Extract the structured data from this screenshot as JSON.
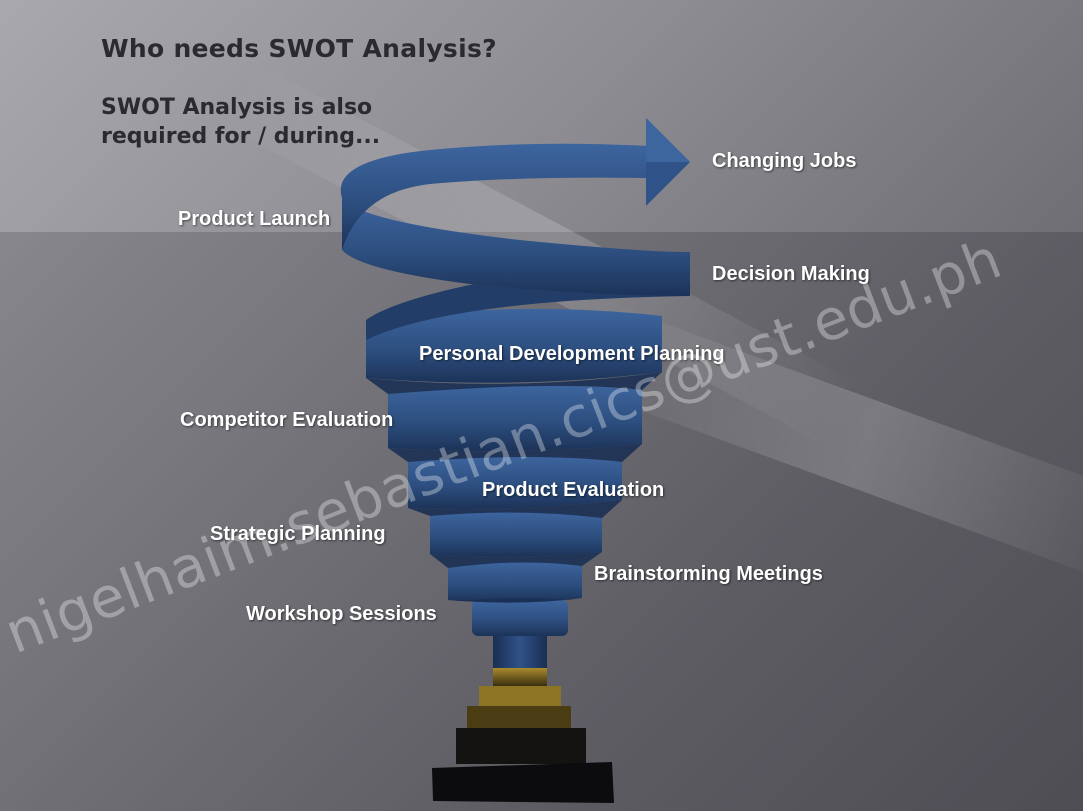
{
  "slide": {
    "title": "Who needs SWOT Analysis?",
    "subtitle": "SWOT Analysis is also required for / during..."
  },
  "labels": {
    "changing_jobs": "Changing Jobs",
    "product_launch": "Product Launch",
    "decision_making": "Decision Making",
    "personal_development_planning": "Personal Development Planning",
    "competitor_evaluation": "Competitor Evaluation",
    "product_evaluation": "Product Evaluation",
    "strategic_planning": "Strategic Planning",
    "brainstorming_meetings": "Brainstorming Meetings",
    "workshop_sessions": "Workshop Sessions"
  },
  "watermark": "nigelhaim.sebastian.cics@ust.edu.ph",
  "colors": {
    "spiral_blue": "#2d4f80",
    "spiral_dark": "#1c3358",
    "base_gold": "#a88a2a",
    "base_black": "#0e0e10"
  }
}
